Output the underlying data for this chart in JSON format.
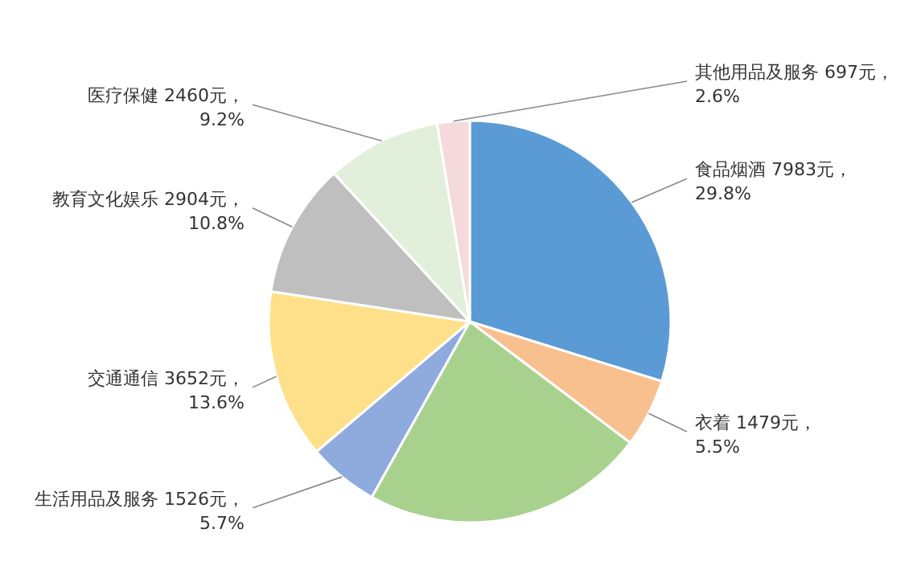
{
  "chart_data": {
    "type": "pie",
    "categories": [
      "食品烟酒",
      "衣着",
      null,
      "生活用品及服务",
      "交通通信",
      "教育文化娱乐",
      "医疗保健",
      "其他用品及服务"
    ],
    "values": [
      29.8,
      5.5,
      22.8,
      5.7,
      13.6,
      10.8,
      9.2,
      2.6
    ],
    "value_labels": [
      "7983元，29.8%",
      "1479元，5.5%",
      null,
      "1526元，5.7%",
      "3652元，13.6%",
      "2904元，10.8%",
      "2460元，9.2%",
      "697元，2.6%"
    ],
    "colors": [
      "#5b9bd5",
      "#f8c08f",
      "#a9d18e",
      "#8faadc",
      "#ffe08a",
      "#bfbfbf",
      "#e2efda",
      "#f4dada"
    ]
  }
}
